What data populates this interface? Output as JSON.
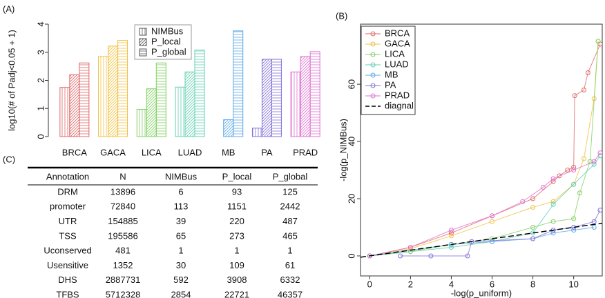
{
  "panels": [
    "(A)",
    "(B)",
    "(C)"
  ],
  "chart_data": [
    {
      "type": "bar",
      "ylabel": "log10(# of Padj<0.05 + 1)",
      "categories": [
        "BRCA",
        "GACA",
        "LICA",
        "LUAD",
        "MB",
        "PA",
        "PRAD"
      ],
      "category_colors": [
        "#e06666",
        "#f0c040",
        "#80d060",
        "#60d0b0",
        "#5aa8e8",
        "#8070d8",
        "#e070d0"
      ],
      "series": [
        {
          "name": "NIMBus",
          "hatch": "vertical",
          "values": [
            1.75,
            2.85,
            0.97,
            1.76,
            0,
            0.3,
            2.3
          ]
        },
        {
          "name": "P_local",
          "hatch": "diagonal",
          "values": [
            2.2,
            3.22,
            1.7,
            2.3,
            0.6,
            2.75,
            2.85
          ]
        },
        {
          "name": "P_global",
          "hatch": "horizontal",
          "values": [
            2.62,
            3.42,
            2.62,
            3.08,
            3.76,
            2.75,
            3.02
          ]
        }
      ],
      "ylim": [
        0,
        4
      ],
      "yticks": [
        0,
        1,
        2,
        3,
        4
      ],
      "legend": "top"
    },
    {
      "type": "line",
      "xlabel": "-log(p_uniform)",
      "ylabel": "-log(p_NIMBus)",
      "xlim": [
        -0.45,
        11.4
      ],
      "ylim": [
        -7,
        81
      ],
      "xticks": [
        0,
        2,
        4,
        6,
        8,
        10
      ],
      "yticks": [
        0,
        20,
        40,
        60
      ],
      "legend": "top-left",
      "series": [
        {
          "name": "BRCA",
          "color": "#e06666",
          "marker": "circle",
          "x": [
            0,
            2,
            4,
            6,
            8,
            9,
            9.3,
            9.7,
            10,
            10.05,
            10.5,
            10.7,
            11.3
          ],
          "values": [
            0,
            3,
            8,
            14,
            20,
            26,
            28,
            30,
            31,
            56,
            58,
            64,
            74
          ]
        },
        {
          "name": "GACA",
          "color": "#f0c040",
          "marker": "circle",
          "x": [
            0,
            2,
            4,
            6,
            8,
            9,
            10,
            10.5,
            11,
            11.2
          ],
          "values": [
            0,
            2.5,
            7,
            12,
            17,
            19,
            25,
            34,
            55,
            75
          ]
        },
        {
          "name": "LICA",
          "color": "#80d060",
          "marker": "circle",
          "x": [
            0,
            2,
            4,
            6,
            8,
            9,
            10,
            10.3,
            10.8,
            11.2
          ],
          "values": [
            0,
            1.5,
            4,
            6,
            10,
            12,
            13,
            22,
            33,
            75
          ]
        },
        {
          "name": "LUAD",
          "color": "#60d0b0",
          "marker": "circle",
          "x": [
            0,
            4,
            6,
            8,
            9,
            10,
            11,
            11.3
          ],
          "values": [
            0,
            3,
            5,
            8,
            18,
            25,
            32,
            35
          ]
        },
        {
          "name": "MB",
          "color": "#5aa8e8",
          "marker": "circle",
          "x": [
            0,
            4,
            6,
            8,
            9,
            10,
            11
          ],
          "values": [
            0,
            4,
            5,
            6,
            8,
            9,
            10
          ]
        },
        {
          "name": "PA",
          "color": "#8070d8",
          "marker": "circle",
          "x": [
            1.5,
            3,
            4.8,
            5,
            8,
            9,
            10,
            11,
            11.3
          ],
          "values": [
            0,
            0,
            0,
            5,
            6,
            9,
            10,
            12,
            16
          ]
        },
        {
          "name": "PRAD",
          "color": "#e070d0",
          "marker": "circle",
          "x": [
            0,
            2,
            4,
            6,
            7.5,
            8.5,
            9,
            10,
            11,
            11.3
          ],
          "values": [
            0,
            3,
            9,
            14,
            19,
            24,
            27,
            30,
            33,
            36
          ]
        },
        {
          "name": "diagnal",
          "color": "#000000",
          "dash": true,
          "x": [
            -0.45,
            11.4
          ],
          "values": [
            -0.45,
            11.4
          ]
        }
      ]
    }
  ],
  "table": {
    "header": [
      "Annotation",
      "N",
      "NIMBus",
      "P_local",
      "P_global"
    ],
    "rows": [
      [
        "DRM",
        13896,
        6,
        93,
        125
      ],
      [
        "promoter",
        72840,
        113,
        1151,
        2442
      ],
      [
        "UTR",
        154885,
        39,
        220,
        487
      ],
      [
        "TSS",
        195586,
        65,
        273,
        465
      ],
      [
        "Uconserved",
        481,
        1,
        1,
        1
      ],
      [
        "Usensitive",
        1352,
        30,
        109,
        61
      ],
      [
        "DHS",
        2887731,
        592,
        3908,
        6332
      ],
      [
        "TFBS",
        5712328,
        2854,
        22721,
        46357
      ]
    ]
  }
}
